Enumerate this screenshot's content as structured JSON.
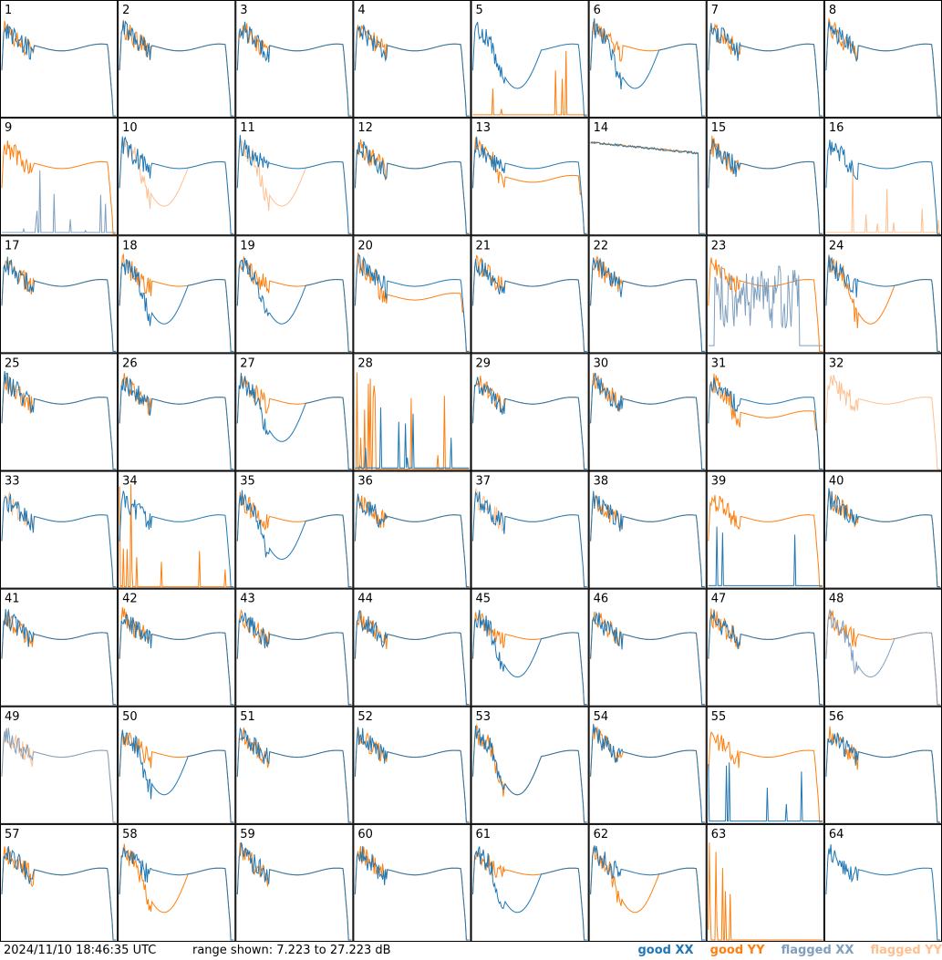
{
  "footer": {
    "timestamp": "2024/11/10 18:46:35 UTC",
    "range_text": "range shown: 7.223 to 27.223 dB",
    "legend": [
      {
        "label": "good XX",
        "color": "#1f77b4"
      },
      {
        "label": "good YY",
        "color": "#ff7f0e"
      },
      {
        "label": "flagged XX",
        "color": "#7f9fbf"
      },
      {
        "label": "flagged YY",
        "color": "#ffbf8f"
      }
    ]
  },
  "chart_data": {
    "type": "line",
    "grid": "8x8 small multiples",
    "ylim_db": [
      7.223,
      27.223
    ],
    "series_styles": {
      "good_xx": "#1f77b4",
      "good_yy": "#ff7f0e",
      "flagged_xx": "#7f9fbf",
      "flagged_yy": "#ffbf8f"
    },
    "panels": [
      {
        "id": "1",
        "xx": "A",
        "yy": "A"
      },
      {
        "id": "2",
        "xx": "A",
        "yy": "A"
      },
      {
        "id": "3",
        "xx": "A",
        "yy": "A"
      },
      {
        "id": "4",
        "xx": "A",
        "yy": "A"
      },
      {
        "id": "5",
        "xx": "dip",
        "yy": "dead"
      },
      {
        "id": "6",
        "xx": "dip",
        "yy": "A"
      },
      {
        "id": "7",
        "xx": "A",
        "yy": "A"
      },
      {
        "id": "8",
        "xx": "A",
        "yy": "A"
      },
      {
        "id": "9",
        "xx": "fxx_dead",
        "yy": "A"
      },
      {
        "id": "10",
        "xx": "A",
        "yy": "fyy_dip"
      },
      {
        "id": "11",
        "xx": "A",
        "yy": "fyy_dip"
      },
      {
        "id": "12",
        "xx": "A",
        "yy": "A"
      },
      {
        "id": "13",
        "xx": "A",
        "yy": "low"
      },
      {
        "id": "14",
        "xx": "flat",
        "yy": "flat"
      },
      {
        "id": "15",
        "xx": "A",
        "yy": "A"
      },
      {
        "id": "16",
        "xx": "A",
        "yy": "fyy_dead"
      },
      {
        "id": "17",
        "xx": "A",
        "yy": "A"
      },
      {
        "id": "18",
        "xx": "dip",
        "yy": "A"
      },
      {
        "id": "19",
        "xx": "dip",
        "yy": "A"
      },
      {
        "id": "20",
        "xx": "A",
        "yy": "low"
      },
      {
        "id": "21",
        "xx": "A",
        "yy": "A"
      },
      {
        "id": "22",
        "xx": "A",
        "yy": "A"
      },
      {
        "id": "23",
        "xx": "fxx_noise",
        "yy": "A"
      },
      {
        "id": "24",
        "xx": "A",
        "yy": "dip"
      },
      {
        "id": "25",
        "xx": "A",
        "yy": "A"
      },
      {
        "id": "26",
        "xx": "A",
        "yy": "A"
      },
      {
        "id": "27",
        "xx": "dip",
        "yy": "A"
      },
      {
        "id": "28",
        "xx": "dead",
        "yy": "spiky_dead"
      },
      {
        "id": "29",
        "xx": "A",
        "yy": "A"
      },
      {
        "id": "30",
        "xx": "A",
        "yy": "A"
      },
      {
        "id": "31",
        "xx": "A",
        "yy": "low"
      },
      {
        "id": "32",
        "xx": "none",
        "yy": "fyy_A"
      },
      {
        "id": "33",
        "xx": "A",
        "yy": "fyy_A"
      },
      {
        "id": "34",
        "xx": "A",
        "yy": "spiky_dead"
      },
      {
        "id": "35",
        "xx": "dip",
        "yy": "A"
      },
      {
        "id": "36",
        "xx": "A",
        "yy": "A"
      },
      {
        "id": "37",
        "xx": "A",
        "yy": "fyy_A"
      },
      {
        "id": "38",
        "xx": "A",
        "yy": "A"
      },
      {
        "id": "39",
        "xx": "dead",
        "yy": "A"
      },
      {
        "id": "40",
        "xx": "A",
        "yy": "A"
      },
      {
        "id": "41",
        "xx": "A",
        "yy": "A"
      },
      {
        "id": "42",
        "xx": "A",
        "yy": "A"
      },
      {
        "id": "43",
        "xx": "A",
        "yy": "A"
      },
      {
        "id": "44",
        "xx": "A",
        "yy": "A"
      },
      {
        "id": "45",
        "xx": "dip",
        "yy": "A"
      },
      {
        "id": "46",
        "xx": "A",
        "yy": "A"
      },
      {
        "id": "47",
        "xx": "A",
        "yy": "A"
      },
      {
        "id": "48",
        "xx": "fxx_dip",
        "yy": "A"
      },
      {
        "id": "49",
        "xx": "fxx_A",
        "yy": "fyy_A"
      },
      {
        "id": "50",
        "xx": "dip",
        "yy": "A"
      },
      {
        "id": "51",
        "xx": "A",
        "yy": "A"
      },
      {
        "id": "52",
        "xx": "A",
        "yy": "A"
      },
      {
        "id": "53",
        "xx": "dip",
        "yy": "dip"
      },
      {
        "id": "54",
        "xx": "A",
        "yy": "A"
      },
      {
        "id": "55",
        "xx": "dead",
        "yy": "A"
      },
      {
        "id": "56",
        "xx": "A",
        "yy": "A"
      },
      {
        "id": "57",
        "xx": "A",
        "yy": "A"
      },
      {
        "id": "58",
        "xx": "A",
        "yy": "dip"
      },
      {
        "id": "59",
        "xx": "A",
        "yy": "A"
      },
      {
        "id": "60",
        "xx": "A",
        "yy": "A"
      },
      {
        "id": "61",
        "xx": "dip",
        "yy": "A"
      },
      {
        "id": "62",
        "xx": "A",
        "yy": "dip"
      },
      {
        "id": "63",
        "xx": "none",
        "yy": "spiky_dead"
      },
      {
        "id": "64",
        "xx": "A",
        "yy": "none"
      }
    ]
  }
}
